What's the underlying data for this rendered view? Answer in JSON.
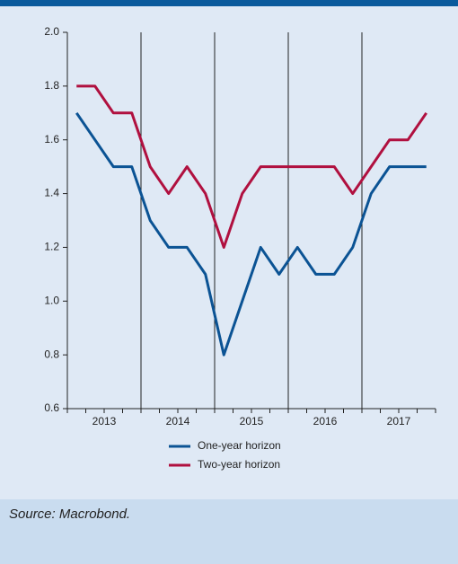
{
  "chart_data": {
    "type": "line",
    "source": "Source: Macrobond.",
    "categories": [
      null,
      null,
      null,
      null,
      null,
      null,
      null,
      null,
      null,
      null,
      null,
      null,
      null,
      null,
      null,
      null,
      null,
      null,
      null,
      null
    ],
    "year_labels": [
      "2013",
      "2014",
      "2015",
      "2016",
      "2017"
    ],
    "series": [
      {
        "name": "One-year horizon",
        "color": "#0b5394",
        "values": [
          1.7,
          1.6,
          1.5,
          1.5,
          1.3,
          1.2,
          1.2,
          1.1,
          0.8,
          1.0,
          1.2,
          1.1,
          1.2,
          1.1,
          1.1,
          1.2,
          1.4,
          1.5,
          1.5,
          1.5
        ]
      },
      {
        "name": "Two-year horizon",
        "color": "#b0103f",
        "values": [
          1.8,
          1.8,
          1.7,
          1.7,
          1.5,
          1.4,
          1.5,
          1.4,
          1.2,
          1.4,
          1.5,
          1.5,
          1.5,
          1.5,
          1.5,
          1.4,
          1.5,
          1.6,
          1.6,
          1.7
        ]
      }
    ],
    "ylim": [
      0.6,
      2.0
    ],
    "yticks": [
      0.6,
      0.8,
      {
        "value": 1.0,
        "label": "1.0"
      },
      1.2,
      1.4,
      1.6,
      1.8,
      {
        "value": 2.0,
        "label": "2.0"
      }
    ],
    "grid": false
  }
}
